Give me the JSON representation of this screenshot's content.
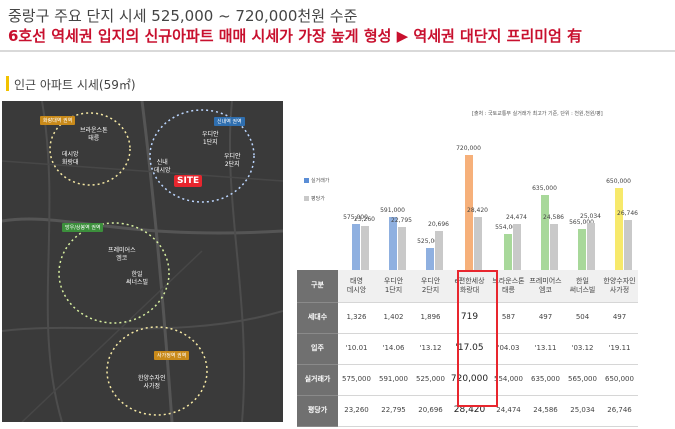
{
  "header": {
    "line1": "중랑구 주요 단지 시세 525,000 ~ 720,000천원 수준",
    "line2": "6호선 역세권 입지의 신규아파트 매매 시세가 가장 높게 형성 ▶ 역세권 대단지 프리미엄 有"
  },
  "section": {
    "title": "인근 아파트 시세(59㎡)"
  },
  "map": {
    "site_label": "SITE",
    "zones": [
      {
        "tag": "화랑대역 권역",
        "color": "orange"
      },
      {
        "tag": "신내역 권역",
        "color": "blue"
      },
      {
        "tag": "망우/상봉역 권역",
        "color": "green"
      },
      {
        "tag": "사가정역 권역",
        "color": "orange"
      }
    ],
    "complex_labels": [
      "브라운스톤\n태릉",
      "데시앙\n화랑대",
      "신내\n데시앙",
      "우디안\n1단지",
      "우디안\n2단지",
      "프레미어스\n엠코",
      "한일\n써너스빌",
      "한양수자인\n사가정"
    ]
  },
  "chart": {
    "source": "[출처 : 국토교통부 실거래가 최고가 기준, 단위 : 천원,천원/평]",
    "legend": [
      {
        "label": "실거래가"
      },
      {
        "label": "평당가"
      }
    ]
  },
  "chart_data": {
    "type": "bar",
    "categories": [
      "태영 데시앙",
      "우디안 1단지",
      "우디안 2단지",
      "e편한세상 화랑대",
      "브라운스톤 태릉",
      "프레미어스 엠코",
      "한일 써너스빌",
      "한양수자인 사가정"
    ],
    "series": [
      {
        "name": "실거래가",
        "values": [
          575000,
          591000,
          525000,
          720000,
          554000,
          635000,
          565000,
          650000
        ],
        "labels": [
          "575,000",
          "591,000",
          "525,000",
          "720,000",
          "554,000",
          "635,000",
          "565,000",
          "650,000"
        ]
      },
      {
        "name": "평당가",
        "values": [
          23260,
          22795,
          20696,
          28420,
          24474,
          24586,
          25034,
          26746
        ],
        "labels": [
          "23,260",
          "22,795",
          "20,696",
          "28,420",
          "24,474",
          "24,586",
          "25,034",
          "26,746"
        ]
      }
    ],
    "bar_colors": [
      "#8fb0e0",
      "#8fb0e0",
      "#8fb0e0",
      "#f6b07a",
      "#a8d89a",
      "#a8d89a",
      "#a8d89a",
      "#f7e96b"
    ],
    "pp_color": "#c9c9c9",
    "legend_colors": {
      "실거래가": "#5b8ed6",
      "평당가": "#c9c9c9"
    }
  },
  "table": {
    "rowhead_names": "구분",
    "names": [
      "태영\n데시앙",
      "우디안\n1단지",
      "우디안\n2단지",
      "e편한세상\n화랑대",
      "브라운스톤\n태릉",
      "프레미어스\n엠코",
      "한일\n써너스빌",
      "한양수자인\n사가정"
    ],
    "rows": [
      {
        "head": "세대수",
        "cells": [
          "1,326",
          "1,402",
          "1,896",
          "719",
          "587",
          "497",
          "504",
          "497"
        ]
      },
      {
        "head": "입주",
        "cells": [
          "'10.01",
          "'14.06",
          "'13.12",
          "'17.05",
          "'04.03",
          "'13.11",
          "'03.12",
          "'19.11"
        ]
      },
      {
        "head": "실거래가",
        "cells": [
          "575,000",
          "591,000",
          "525,000",
          "720,000",
          "554,000",
          "635,000",
          "565,000",
          "650,000"
        ]
      },
      {
        "head": "평당가",
        "cells": [
          "23,260",
          "22,795",
          "20,696",
          "28,420",
          "24,474",
          "24,586",
          "25,034",
          "26,746"
        ]
      }
    ]
  }
}
